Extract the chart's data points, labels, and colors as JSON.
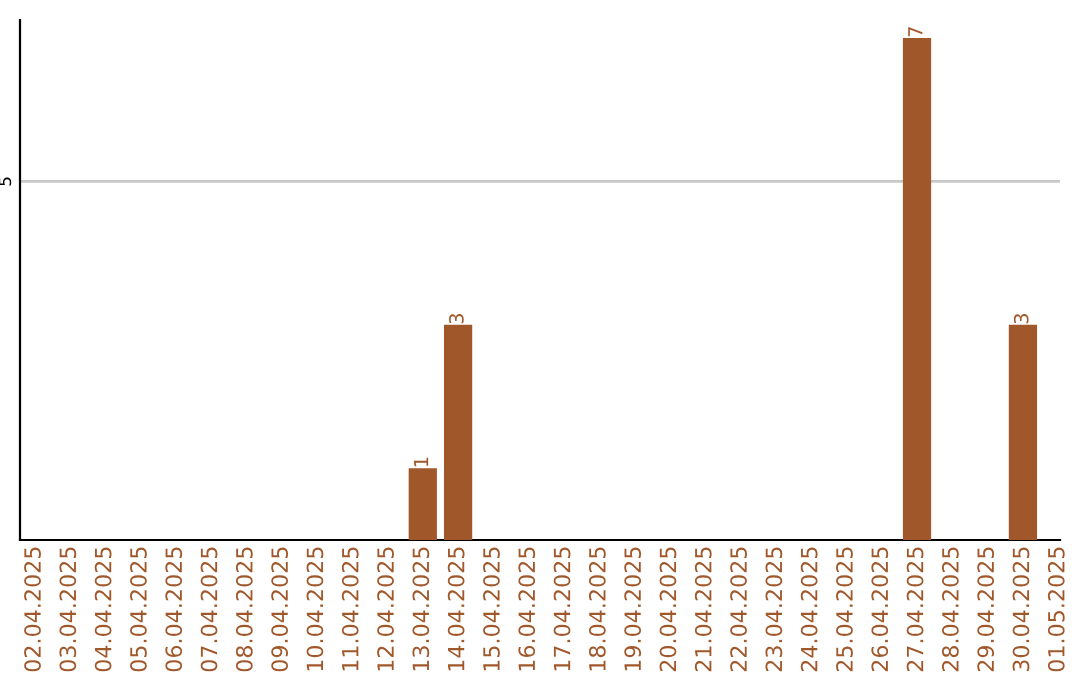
{
  "chart_data": {
    "type": "bar",
    "categories": [
      "02.04.2025",
      "03.04.2025",
      "04.04.2025",
      "05.04.2025",
      "06.04.2025",
      "07.04.2025",
      "08.04.2025",
      "09.04.2025",
      "10.04.2025",
      "11.04.2025",
      "12.04.2025",
      "13.04.2025",
      "14.04.2025",
      "15.04.2025",
      "16.04.2025",
      "17.04.2025",
      "18.04.2025",
      "19.04.2025",
      "20.04.2025",
      "21.04.2025",
      "22.04.2025",
      "23.04.2025",
      "24.04.2025",
      "25.04.2025",
      "26.04.2025",
      "27.04.2025",
      "28.04.2025",
      "29.04.2025",
      "30.04.2025",
      "01.05.2025"
    ],
    "values": [
      0,
      0,
      0,
      0,
      0,
      0,
      0,
      0,
      0,
      0,
      0,
      1,
      3,
      0,
      0,
      0,
      0,
      0,
      0,
      0,
      0,
      0,
      0,
      0,
      0,
      7,
      0,
      0,
      3,
      0
    ],
    "value_labels": [
      null,
      null,
      null,
      null,
      null,
      null,
      null,
      null,
      null,
      null,
      null,
      "1",
      "3",
      null,
      null,
      null,
      null,
      null,
      null,
      null,
      null,
      null,
      null,
      null,
      null,
      "7",
      null,
      null,
      "3",
      null
    ],
    "color": "#a0572a",
    "ylim": [
      0,
      7.25
    ],
    "yticks": [
      5
    ],
    "grid": "y"
  }
}
